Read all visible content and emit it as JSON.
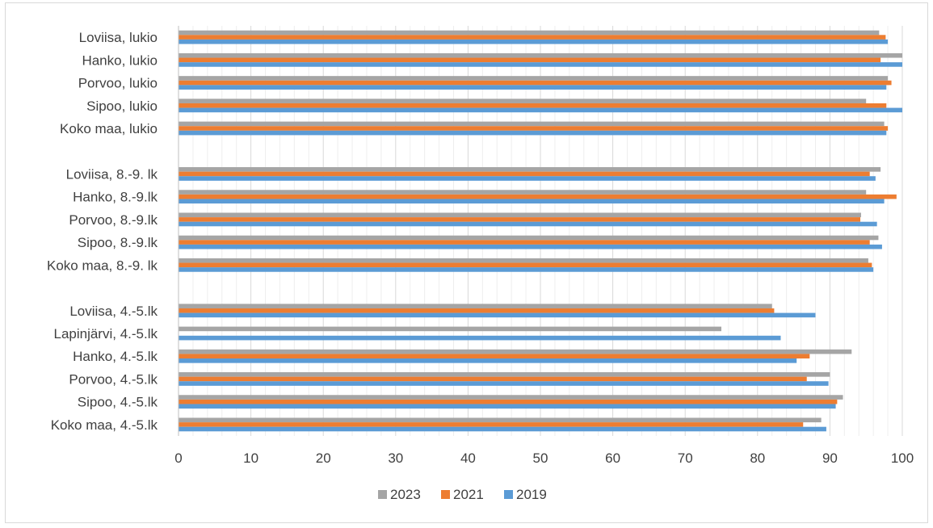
{
  "chart_data": {
    "type": "bar",
    "orientation": "horizontal",
    "categories": [
      "Loviisa, lukio",
      "Hanko, lukio",
      "Porvoo, lukio",
      "Sipoo, lukio",
      "Koko maa, lukio",
      "",
      "Loviisa, 8.-9. lk",
      "Hanko, 8.-9.lk",
      "Porvoo, 8.-9.lk",
      "Sipoo, 8.-9.lk",
      "Koko maa, 8.-9. lk",
      "",
      "Loviisa, 4.-5.lk",
      "Lapinjärvi, 4.-5.lk",
      "Hanko, 4.-5.lk",
      "Porvoo, 4.-5.lk",
      "Sipoo, 4.-5.lk",
      "Koko maa, 4.-5.lk"
    ],
    "series": [
      {
        "name": "2023",
        "color": "#a5a5a5",
        "values": [
          96.8,
          100,
          98,
          95,
          97.5,
          null,
          97,
          95,
          94.3,
          96.7,
          95.3,
          null,
          82,
          75,
          93,
          90,
          91.8,
          88.8
        ]
      },
      {
        "name": "2021",
        "color": "#ed7d31",
        "values": [
          97.7,
          97,
          98.5,
          97.8,
          98,
          null,
          95.5,
          99.2,
          94.2,
          95.5,
          95.8,
          null,
          82.3,
          null,
          87.2,
          86.8,
          91,
          86.3
        ]
      },
      {
        "name": "2019",
        "color": "#5b9bd5",
        "values": [
          98,
          100,
          97.8,
          100,
          97.8,
          null,
          96.3,
          97.5,
          96.5,
          97.2,
          96,
          null,
          88,
          83.2,
          85.4,
          89.8,
          90.8,
          89.5
        ]
      }
    ],
    "xlim": [
      0,
      100
    ],
    "xticks": [
      0,
      10,
      20,
      30,
      40,
      50,
      60,
      70,
      80,
      90,
      100
    ],
    "grid": true,
    "legend_position": "bottom",
    "title": "",
    "xlabel": "",
    "ylabel": ""
  }
}
